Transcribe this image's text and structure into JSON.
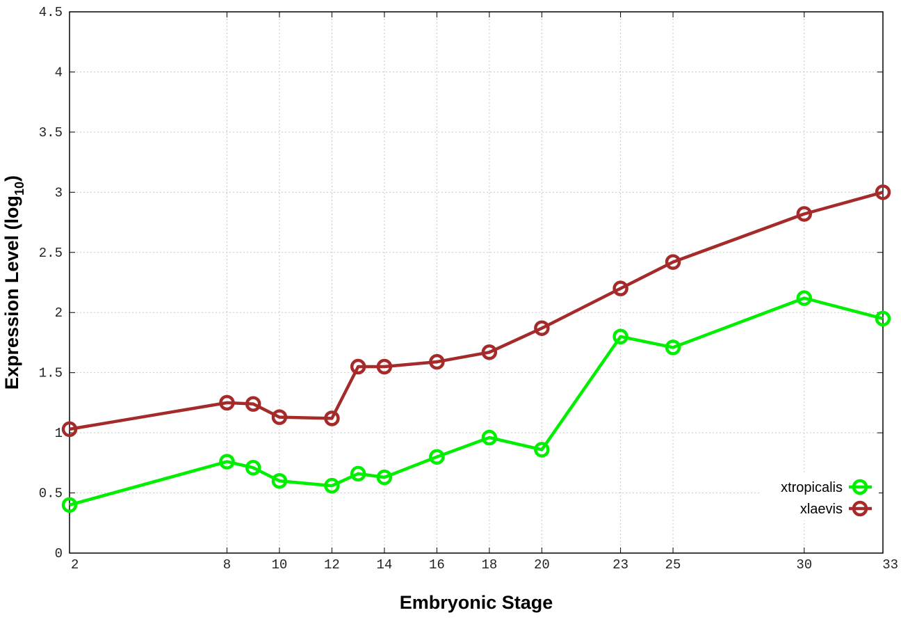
{
  "chart_data": {
    "type": "line",
    "xlabel": "Embryonic Stage",
    "ylabel_main": "Expression Level (log",
    "ylabel_sub": "10",
    "ylabel_close": ")",
    "x_ticks": [
      2,
      8,
      10,
      12,
      14,
      16,
      18,
      20,
      23,
      25,
      30,
      33
    ],
    "y_ticks": [
      "0",
      "0.5",
      "1",
      "1.5",
      "2",
      "2.5",
      "3",
      "3.5",
      "4",
      "4.5"
    ],
    "xlim": [
      2,
      33
    ],
    "ylim": [
      0,
      4.5
    ],
    "x": [
      2,
      8,
      9,
      10,
      12,
      13,
      14,
      16,
      18,
      20,
      23,
      25,
      30,
      33
    ],
    "grid": true,
    "legend_position": "bottom-right",
    "series": [
      {
        "name": "xtropicalis",
        "color": "#00ee00",
        "values": [
          0.4,
          0.76,
          0.71,
          0.6,
          0.56,
          0.66,
          0.63,
          0.8,
          0.96,
          0.86,
          1.8,
          1.71,
          2.12,
          1.95
        ]
      },
      {
        "name": "xlaevis",
        "color": "#a52a2a",
        "values": [
          1.03,
          1.25,
          1.24,
          1.13,
          1.12,
          1.55,
          1.55,
          1.59,
          1.67,
          1.87,
          2.2,
          2.42,
          2.82,
          3.0
        ]
      }
    ]
  }
}
